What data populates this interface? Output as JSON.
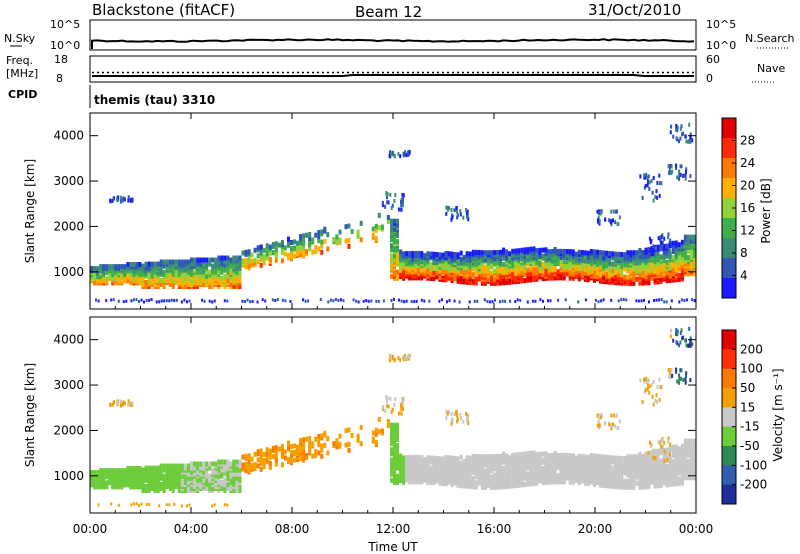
{
  "header": {
    "station": "Blackstone (fitACF)",
    "beam": "Beam 12",
    "date": "31/Oct/2010"
  },
  "top_panels": {
    "nsky_label": "N.Sky",
    "nsky_ticks": [
      "10^5",
      "10^0"
    ],
    "nsearch_label": "N.Search",
    "nsearch_ticks": [
      "10^5",
      "10^0"
    ],
    "freq_label": "Freq.",
    "freq_unit": "[MHz]",
    "freq_ticks": [
      "18",
      "8"
    ],
    "nave_label": "Nave",
    "nave_ticks": [
      "60",
      "0"
    ],
    "cpid_label": "CPID",
    "cpid_text": "themis (tau) 3310"
  },
  "chart_data": [
    {
      "type": "heatmap",
      "name": "power",
      "ylabel": "Slant Range [km]",
      "yticks": [
        "1000",
        "2000",
        "3000",
        "4000"
      ],
      "ylim": [
        180,
        4500
      ],
      "xlim_hours": [
        0,
        24
      ],
      "colorbar": {
        "label": "Power [dB]",
        "ticks": [
          "4",
          "8",
          "12",
          "16",
          "20",
          "24",
          "28"
        ],
        "range": [
          0,
          32
        ],
        "colors": [
          "#1a1aff",
          "#2e58b4",
          "#3a8a78",
          "#3fae4a",
          "#8fd23a",
          "#ffb000",
          "#ff7a00",
          "#ff2a00",
          "#e00000"
        ]
      }
    },
    {
      "type": "heatmap",
      "name": "velocity",
      "ylabel": "Slant Range [km]",
      "yticks": [
        "1000",
        "2000",
        "3000",
        "4000"
      ],
      "ylim": [
        180,
        4500
      ],
      "xlim_hours": [
        0,
        24
      ],
      "colorbar": {
        "label": "Velocity [m s⁻¹]",
        "ticks": [
          "200",
          "100",
          "50",
          "15",
          "-15",
          "-50",
          "-100",
          "-200"
        ],
        "colors": [
          "#1e2f9c",
          "#2e5fb0",
          "#2f8a58",
          "#6dcc3a",
          "#c8c8c8",
          "#f5a000",
          "#ff7a00",
          "#ff3000",
          "#e00000"
        ]
      }
    }
  ],
  "xaxis": {
    "ticks": [
      "00:00",
      "04:00",
      "08:00",
      "12:00",
      "16:00",
      "20:00",
      "00:00"
    ],
    "label": "Time UT"
  }
}
